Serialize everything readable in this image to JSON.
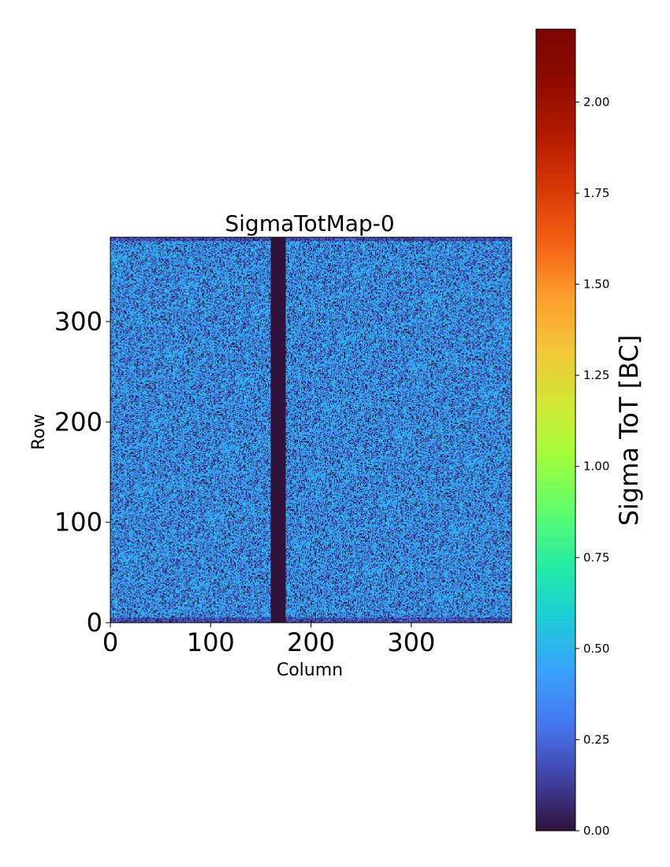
{
  "chart_data": {
    "type": "heatmap",
    "title": "SigmaTotMap-0",
    "xlabel": "Column",
    "ylabel": "Row",
    "xlim": [
      0,
      400
    ],
    "ylim": [
      0,
      384
    ],
    "x_ticks": [
      "0",
      "100",
      "200",
      "300"
    ],
    "y_ticks": [
      "0",
      "100",
      "200",
      "300"
    ],
    "colorbar": {
      "label": "Sigma ToT [BC]",
      "range": [
        0.0,
        2.2
      ],
      "ticks": [
        "0.00",
        "0.25",
        "0.50",
        "0.75",
        "1.00",
        "1.25",
        "1.50",
        "1.75",
        "2.00"
      ],
      "colormap": "turbo"
    },
    "features": {
      "typical_value_range": [
        0.0,
        0.6
      ],
      "dead_column_band": [
        160,
        175
      ],
      "dead_column_value": 0.0,
      "low_value_edge_rows": [
        [
          0,
          5
        ],
        [
          380,
          384
        ]
      ]
    },
    "grid": false
  }
}
